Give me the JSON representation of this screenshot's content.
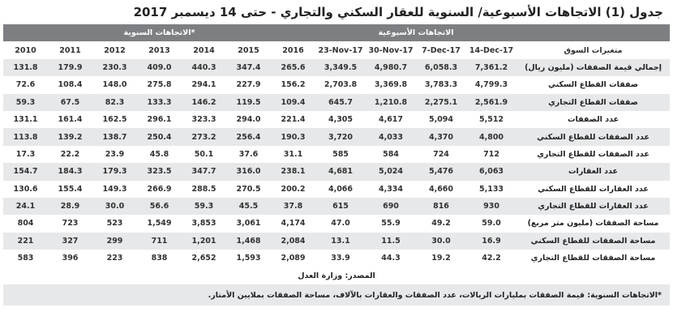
{
  "title": "جدول (1) الاتجاهات الأسبوعية/ السنوية للعقار السكني والتجاري - حتى 14 ديسمبر 2017",
  "group_headers": {
    "annual": "الاتجاهات السنوية*",
    "weekly": "الاتجاهات الأسبوعية"
  },
  "columns": [
    "2010",
    "2011",
    "2012",
    "2013",
    "2014",
    "2015",
    "2016",
    "23-Nov-17",
    "30-Nov-17",
    "7-Dec-17",
    "14-Dec-17"
  ],
  "label_header": "متغيرات السوق",
  "rows": [
    {
      "label": "إجمالي قيمة الصفقات (مليون ريال)",
      "values": [
        "131.8",
        "179.9",
        "230.3",
        "409.0",
        "440.3",
        "347.4",
        "265.6",
        "3,349.5",
        "4,980.7",
        "6,058.3",
        "7,361.2"
      ]
    },
    {
      "label": "صفقات القطاع السكني",
      "values": [
        "72.6",
        "108.4",
        "148.0",
        "275.8",
        "294.1",
        "227.9",
        "156.2",
        "2,703.8",
        "3,369.8",
        "3,783.3",
        "4,799.3"
      ]
    },
    {
      "label": "صفقات القطاع التجاري",
      "values": [
        "59.3",
        "67.5",
        "82.3",
        "133.3",
        "146.2",
        "119.5",
        "109.4",
        "645.7",
        "1,210.8",
        "2,275.1",
        "2,561.9"
      ]
    },
    {
      "label": "عدد الصفقات",
      "values": [
        "131.1",
        "161.4",
        "162.5",
        "296.1",
        "323.3",
        "294.0",
        "221.4",
        "4,305",
        "4,617",
        "5,094",
        "5,512"
      ]
    },
    {
      "label": "عدد الصفقات للقطاع السكني",
      "values": [
        "113.8",
        "139.2",
        "138.7",
        "250.4",
        "273.2",
        "256.4",
        "190.3",
        "3,720",
        "4,033",
        "4,370",
        "4,800"
      ]
    },
    {
      "label": "عدد الصفقات للقطاع التجاري",
      "values": [
        "17.3",
        "22.2",
        "23.9",
        "45.8",
        "50.1",
        "37.6",
        "31.1",
        "585",
        "584",
        "724",
        "712"
      ]
    },
    {
      "label": "عدد العقارات",
      "values": [
        "154.7",
        "184.3",
        "179.3",
        "323.5",
        "347.7",
        "316.0",
        "238.1",
        "4,681",
        "5,024",
        "5,476",
        "6,063"
      ]
    },
    {
      "label": "عدد العقارات للقطاع السكني",
      "values": [
        "130.6",
        "155.4",
        "149.3",
        "266.9",
        "288.5",
        "270.5",
        "200.2",
        "4,066",
        "4,334",
        "4,660",
        "5,133"
      ]
    },
    {
      "label": "عدد العقارات للقطاع التجاري",
      "values": [
        "24.1",
        "28.9",
        "30.0",
        "56.6",
        "59.3",
        "45.5",
        "37.8",
        "615",
        "690",
        "816",
        "930"
      ]
    },
    {
      "label": "مساحة الصفقات (مليون متر مربع)",
      "values": [
        "804",
        "723",
        "523",
        "1,549",
        "3,853",
        "3,061",
        "4,174",
        "47.0",
        "55.9",
        "49.2",
        "59.0"
      ]
    },
    {
      "label": "مساحة الصفقات للقطاع السكني",
      "values": [
        "221",
        "327",
        "299",
        "711",
        "1,201",
        "1,468",
        "2,084",
        "13.1",
        "11.5",
        "30.0",
        "16.9"
      ]
    },
    {
      "label": "مساحة الصفقات للقطاع التجاري",
      "values": [
        "583",
        "396",
        "223",
        "838",
        "2,652",
        "1,593",
        "2,089",
        "33.9",
        "44.3",
        "19.2",
        "42.2"
      ]
    }
  ],
  "source": "المصدر: وزارة العدل",
  "note": "*الاتجاهات السنوية: قيمة الصفقات بمليارات الريالات، عدد الصفقات والعقارات بالآلاف، مساحة الصفقات بملايين الأمتار."
}
